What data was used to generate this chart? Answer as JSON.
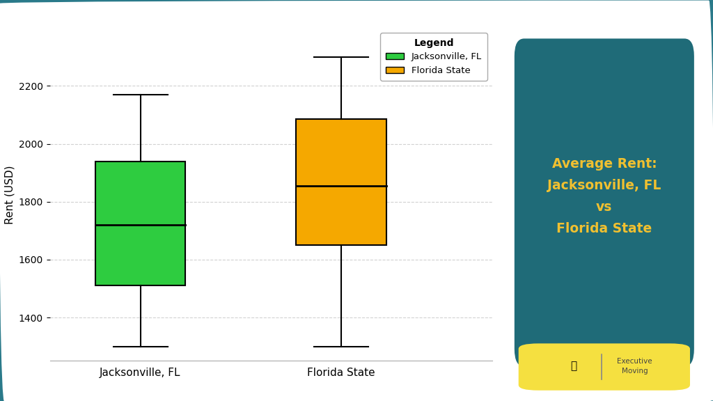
{
  "jacksonville": {
    "whisker_low": 1300,
    "q1": 1510,
    "median": 1720,
    "q3": 1940,
    "whisker_high": 2170,
    "color": "#2ecc40",
    "label": "Jacksonville, FL"
  },
  "florida": {
    "whisker_low": 1300,
    "q1": 1650,
    "median": 1855,
    "q3": 2085,
    "whisker_high": 2300,
    "color": "#f5a800",
    "label": "Florida State"
  },
  "ylabel": "Rent (USD)",
  "ylim": [
    1250,
    2400
  ],
  "yticks": [
    1400,
    1600,
    1800,
    2000,
    2200
  ],
  "background_color": "#ffffff",
  "grid_color": "#cccccc",
  "title_box_color": "#1f6b78",
  "title_text": "Average Rent:\nJacksonville, FL\nvs\nFlorida State",
  "title_text_color": "#f0c030",
  "legend_title": "Legend",
  "box_width": 0.45,
  "border_color": "#2a7a8a",
  "logo_bg_color": "#f5e040",
  "logo_text_color": "#444444",
  "logo_icon_color": "#3cc060"
}
